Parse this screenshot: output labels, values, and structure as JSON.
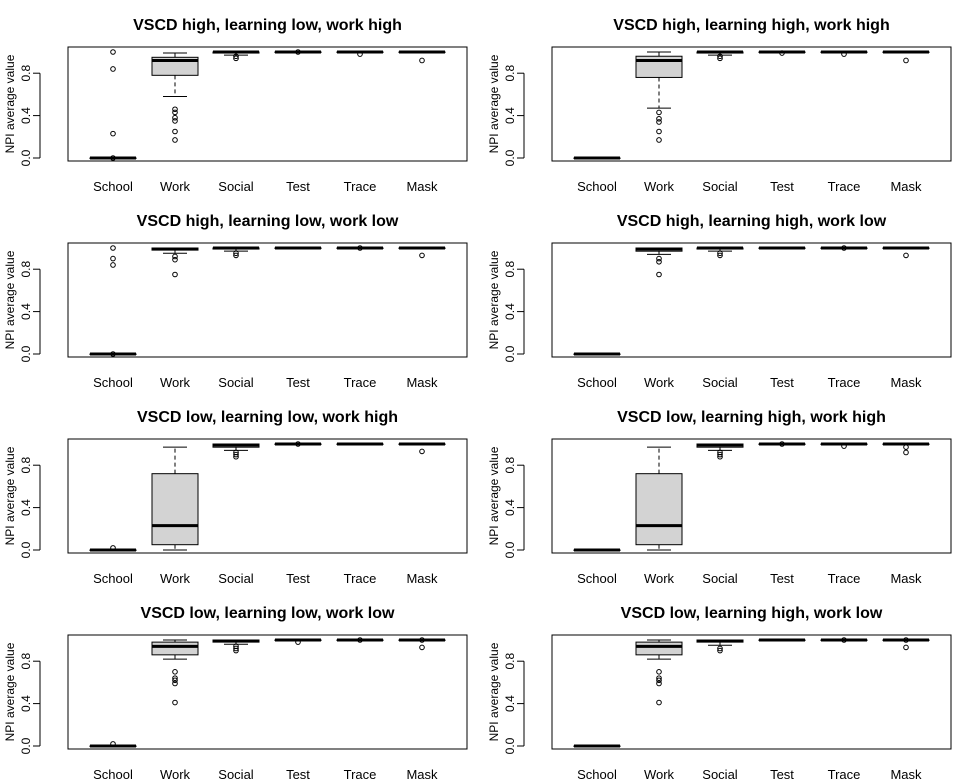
{
  "chart_data": [
    {
      "type": "boxplot",
      "title": "VSCD high, learning low, work high",
      "ylabel": "NPI average value",
      "xlabel": "",
      "ylim": [
        0,
        1
      ],
      "yticks": [
        "0.0",
        "0.4",
        "0.8"
      ],
      "categories": [
        "School",
        "Work",
        "Social",
        "Test",
        "Trace",
        "Mask"
      ],
      "boxes": [
        {
          "q1": 0.0,
          "median": 0.0,
          "q3": 0.0,
          "whisker_low": 0.0,
          "whisker_high": 0.0,
          "outliers": [
            1.0,
            0.84,
            0.23,
            0.0
          ]
        },
        {
          "q1": 0.78,
          "median": 0.92,
          "q3": 0.95,
          "whisker_low": 0.58,
          "whisker_high": 0.99,
          "outliers": [
            0.46,
            0.43,
            0.38,
            0.35,
            0.25,
            0.17
          ]
        },
        {
          "q1": 0.99,
          "median": 1.0,
          "q3": 1.0,
          "whisker_low": 0.97,
          "whisker_high": 1.0,
          "outliers": [
            0.96,
            0.94
          ]
        },
        {
          "q1": 1.0,
          "median": 1.0,
          "q3": 1.0,
          "whisker_low": 1.0,
          "whisker_high": 1.0,
          "outliers": [
            1.0
          ]
        },
        {
          "q1": 1.0,
          "median": 1.0,
          "q3": 1.0,
          "whisker_low": 1.0,
          "whisker_high": 1.0,
          "outliers": [
            0.98
          ]
        },
        {
          "q1": 1.0,
          "median": 1.0,
          "q3": 1.0,
          "whisker_low": 1.0,
          "whisker_high": 1.0,
          "outliers": [
            0.92
          ]
        }
      ]
    },
    {
      "type": "boxplot",
      "title": "VSCD high, learning high, work high",
      "ylabel": "NPI average value",
      "xlabel": "",
      "ylim": [
        0,
        1
      ],
      "yticks": [
        "0.0",
        "0.4",
        "0.8"
      ],
      "categories": [
        "School",
        "Work",
        "Social",
        "Test",
        "Trace",
        "Mask"
      ],
      "boxes": [
        {
          "q1": 0.0,
          "median": 0.0,
          "q3": 0.0,
          "whisker_low": 0.0,
          "whisker_high": 0.0,
          "outliers": []
        },
        {
          "q1": 0.76,
          "median": 0.92,
          "q3": 0.96,
          "whisker_low": 0.47,
          "whisker_high": 1.0,
          "outliers": [
            0.43,
            0.37,
            0.34,
            0.25,
            0.17
          ]
        },
        {
          "q1": 0.99,
          "median": 1.0,
          "q3": 1.0,
          "whisker_low": 0.97,
          "whisker_high": 1.0,
          "outliers": [
            0.96,
            0.94
          ]
        },
        {
          "q1": 1.0,
          "median": 1.0,
          "q3": 1.0,
          "whisker_low": 1.0,
          "whisker_high": 1.0,
          "outliers": [
            0.99
          ]
        },
        {
          "q1": 1.0,
          "median": 1.0,
          "q3": 1.0,
          "whisker_low": 1.0,
          "whisker_high": 1.0,
          "outliers": [
            0.98
          ]
        },
        {
          "q1": 1.0,
          "median": 1.0,
          "q3": 1.0,
          "whisker_low": 1.0,
          "whisker_high": 1.0,
          "outliers": [
            0.92
          ]
        }
      ]
    },
    {
      "type": "boxplot",
      "title": "VSCD high, learning low, work low",
      "ylabel": "NPI average value",
      "xlabel": "",
      "ylim": [
        0,
        1
      ],
      "yticks": [
        "0.0",
        "0.4",
        "0.8"
      ],
      "categories": [
        "School",
        "Work",
        "Social",
        "Test",
        "Trace",
        "Mask"
      ],
      "boxes": [
        {
          "q1": 0.0,
          "median": 0.0,
          "q3": 0.0,
          "whisker_low": 0.0,
          "whisker_high": 0.0,
          "outliers": [
            1.0,
            0.9,
            0.84,
            0.0
          ]
        },
        {
          "q1": 0.98,
          "median": 0.99,
          "q3": 1.0,
          "whisker_low": 0.95,
          "whisker_high": 1.0,
          "outliers": [
            0.92,
            0.89,
            0.75
          ]
        },
        {
          "q1": 0.99,
          "median": 1.0,
          "q3": 1.0,
          "whisker_low": 0.97,
          "whisker_high": 1.0,
          "outliers": [
            0.95,
            0.93
          ]
        },
        {
          "q1": 1.0,
          "median": 1.0,
          "q3": 1.0,
          "whisker_low": 1.0,
          "whisker_high": 1.0,
          "outliers": []
        },
        {
          "q1": 1.0,
          "median": 1.0,
          "q3": 1.0,
          "whisker_low": 1.0,
          "whisker_high": 1.0,
          "outliers": [
            1.0
          ]
        },
        {
          "q1": 1.0,
          "median": 1.0,
          "q3": 1.0,
          "whisker_low": 1.0,
          "whisker_high": 1.0,
          "outliers": [
            0.93
          ]
        }
      ]
    },
    {
      "type": "boxplot",
      "title": "VSCD high, learning high, work low",
      "ylabel": "NPI average value",
      "xlabel": "",
      "ylim": [
        0,
        1
      ],
      "yticks": [
        "0.0",
        "0.4",
        "0.8"
      ],
      "categories": [
        "School",
        "Work",
        "Social",
        "Test",
        "Trace",
        "Mask"
      ],
      "boxes": [
        {
          "q1": 0.0,
          "median": 0.0,
          "q3": 0.0,
          "whisker_low": 0.0,
          "whisker_high": 0.0,
          "outliers": []
        },
        {
          "q1": 0.97,
          "median": 0.99,
          "q3": 1.0,
          "whisker_low": 0.94,
          "whisker_high": 1.0,
          "outliers": [
            0.9,
            0.87,
            0.75
          ]
        },
        {
          "q1": 0.99,
          "median": 1.0,
          "q3": 1.0,
          "whisker_low": 0.97,
          "whisker_high": 1.0,
          "outliers": [
            0.95,
            0.93
          ]
        },
        {
          "q1": 1.0,
          "median": 1.0,
          "q3": 1.0,
          "whisker_low": 1.0,
          "whisker_high": 1.0,
          "outliers": []
        },
        {
          "q1": 1.0,
          "median": 1.0,
          "q3": 1.0,
          "whisker_low": 1.0,
          "whisker_high": 1.0,
          "outliers": [
            1.0
          ]
        },
        {
          "q1": 1.0,
          "median": 1.0,
          "q3": 1.0,
          "whisker_low": 1.0,
          "whisker_high": 1.0,
          "outliers": [
            0.93
          ]
        }
      ]
    },
    {
      "type": "boxplot",
      "title": "VSCD low, learning low, work high",
      "ylabel": "NPI average value",
      "xlabel": "",
      "ylim": [
        0,
        1
      ],
      "yticks": [
        "0.0",
        "0.4",
        "0.8"
      ],
      "categories": [
        "School",
        "Work",
        "Social",
        "Test",
        "Trace",
        "Mask"
      ],
      "boxes": [
        {
          "q1": 0.0,
          "median": 0.0,
          "q3": 0.0,
          "whisker_low": 0.0,
          "whisker_high": 0.0,
          "outliers": [
            0.02
          ]
        },
        {
          "q1": 0.05,
          "median": 0.23,
          "q3": 0.72,
          "whisker_low": 0.0,
          "whisker_high": 0.97,
          "outliers": []
        },
        {
          "q1": 0.97,
          "median": 0.99,
          "q3": 1.0,
          "whisker_low": 0.94,
          "whisker_high": 1.0,
          "outliers": [
            0.92,
            0.9,
            0.88
          ]
        },
        {
          "q1": 1.0,
          "median": 1.0,
          "q3": 1.0,
          "whisker_low": 1.0,
          "whisker_high": 1.0,
          "outliers": [
            1.0
          ]
        },
        {
          "q1": 1.0,
          "median": 1.0,
          "q3": 1.0,
          "whisker_low": 1.0,
          "whisker_high": 1.0,
          "outliers": []
        },
        {
          "q1": 1.0,
          "median": 1.0,
          "q3": 1.0,
          "whisker_low": 1.0,
          "whisker_high": 1.0,
          "outliers": [
            0.93
          ]
        }
      ]
    },
    {
      "type": "boxplot",
      "title": "VSCD low, learning high, work high",
      "ylabel": "NPI average value",
      "xlabel": "",
      "ylim": [
        0,
        1
      ],
      "yticks": [
        "0.0",
        "0.4",
        "0.8"
      ],
      "categories": [
        "School",
        "Work",
        "Social",
        "Test",
        "Trace",
        "Mask"
      ],
      "boxes": [
        {
          "q1": 0.0,
          "median": 0.0,
          "q3": 0.0,
          "whisker_low": 0.0,
          "whisker_high": 0.0,
          "outliers": []
        },
        {
          "q1": 0.05,
          "median": 0.23,
          "q3": 0.72,
          "whisker_low": 0.0,
          "whisker_high": 0.97,
          "outliers": []
        },
        {
          "q1": 0.97,
          "median": 0.99,
          "q3": 1.0,
          "whisker_low": 0.94,
          "whisker_high": 1.0,
          "outliers": [
            0.92,
            0.9,
            0.88
          ]
        },
        {
          "q1": 1.0,
          "median": 1.0,
          "q3": 1.0,
          "whisker_low": 1.0,
          "whisker_high": 1.0,
          "outliers": [
            1.0
          ]
        },
        {
          "q1": 1.0,
          "median": 1.0,
          "q3": 1.0,
          "whisker_low": 1.0,
          "whisker_high": 1.0,
          "outliers": [
            0.98
          ]
        },
        {
          "q1": 1.0,
          "median": 1.0,
          "q3": 1.0,
          "whisker_low": 1.0,
          "whisker_high": 1.0,
          "outliers": [
            0.97,
            0.92
          ]
        }
      ]
    },
    {
      "type": "boxplot",
      "title": "VSCD low, learning low, work low",
      "ylabel": "NPI average value",
      "xlabel": "",
      "ylim": [
        0,
        1
      ],
      "yticks": [
        "0.0",
        "0.4",
        "0.8"
      ],
      "categories": [
        "School",
        "Work",
        "Social",
        "Test",
        "Trace",
        "Mask"
      ],
      "boxes": [
        {
          "q1": 0.0,
          "median": 0.0,
          "q3": 0.0,
          "whisker_low": 0.0,
          "whisker_high": 0.0,
          "outliers": [
            0.02
          ]
        },
        {
          "q1": 0.86,
          "median": 0.94,
          "q3": 0.98,
          "whisker_low": 0.82,
          "whisker_high": 1.0,
          "outliers": [
            0.7,
            0.64,
            0.62,
            0.59,
            0.41
          ]
        },
        {
          "q1": 0.98,
          "median": 0.99,
          "q3": 1.0,
          "whisker_low": 0.96,
          "whisker_high": 1.0,
          "outliers": [
            0.94,
            0.92,
            0.9
          ]
        },
        {
          "q1": 1.0,
          "median": 1.0,
          "q3": 1.0,
          "whisker_low": 1.0,
          "whisker_high": 1.0,
          "outliers": [
            0.98
          ]
        },
        {
          "q1": 1.0,
          "median": 1.0,
          "q3": 1.0,
          "whisker_low": 1.0,
          "whisker_high": 1.0,
          "outliers": [
            1.0
          ]
        },
        {
          "q1": 1.0,
          "median": 1.0,
          "q3": 1.0,
          "whisker_low": 1.0,
          "whisker_high": 1.0,
          "outliers": [
            1.0,
            0.93
          ]
        }
      ]
    },
    {
      "type": "boxplot",
      "title": "VSCD low, learning high, work low",
      "ylabel": "NPI average value",
      "xlabel": "",
      "ylim": [
        0,
        1
      ],
      "yticks": [
        "0.0",
        "0.4",
        "0.8"
      ],
      "categories": [
        "School",
        "Work",
        "Social",
        "Test",
        "Trace",
        "Mask"
      ],
      "boxes": [
        {
          "q1": 0.0,
          "median": 0.0,
          "q3": 0.0,
          "whisker_low": 0.0,
          "whisker_high": 0.0,
          "outliers": []
        },
        {
          "q1": 0.86,
          "median": 0.94,
          "q3": 0.98,
          "whisker_low": 0.82,
          "whisker_high": 1.0,
          "outliers": [
            0.7,
            0.64,
            0.62,
            0.59,
            0.41
          ]
        },
        {
          "q1": 0.98,
          "median": 0.99,
          "q3": 1.0,
          "whisker_low": 0.95,
          "whisker_high": 1.0,
          "outliers": [
            0.92,
            0.9
          ]
        },
        {
          "q1": 1.0,
          "median": 1.0,
          "q3": 1.0,
          "whisker_low": 1.0,
          "whisker_high": 1.0,
          "outliers": []
        },
        {
          "q1": 1.0,
          "median": 1.0,
          "q3": 1.0,
          "whisker_low": 1.0,
          "whisker_high": 1.0,
          "outliers": [
            1.0
          ]
        },
        {
          "q1": 1.0,
          "median": 1.0,
          "q3": 1.0,
          "whisker_low": 1.0,
          "whisker_high": 1.0,
          "outliers": [
            1.0,
            0.93
          ]
        }
      ]
    }
  ]
}
